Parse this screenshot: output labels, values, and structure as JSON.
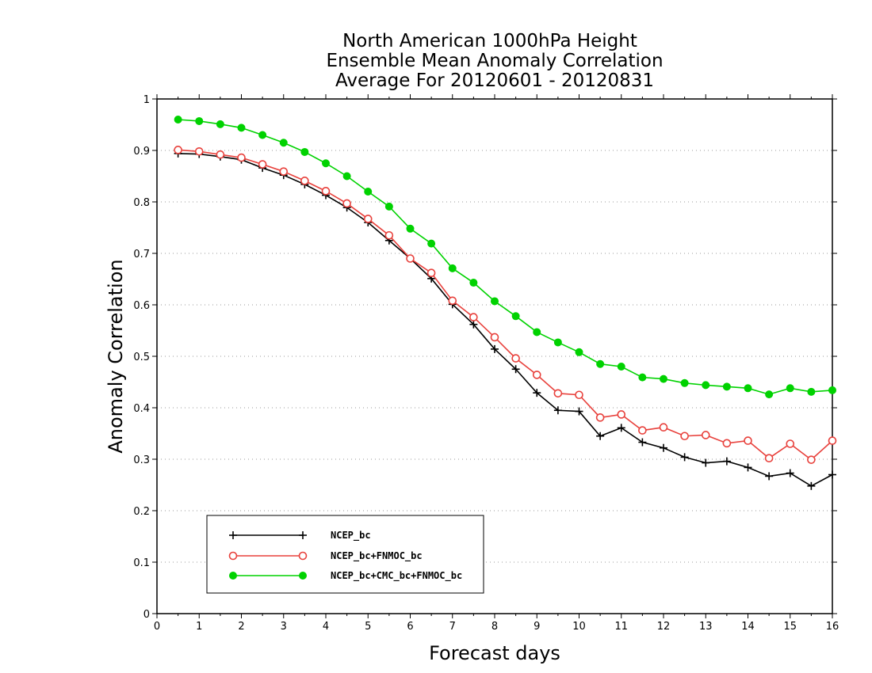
{
  "chart_data": {
    "type": "line",
    "title": [
      "North American 1000hPa Height",
      "Ensemble Mean Anomaly Correlation",
      "Average For 20120601 - 20120831"
    ],
    "xlabel": "Forecast days",
    "ylabel": "Anomaly Correlation",
    "xlim": [
      0,
      16
    ],
    "ylim": [
      0,
      1
    ],
    "xticks": [
      "0",
      "1",
      "2",
      "3",
      "4",
      "5",
      "6",
      "7",
      "8",
      "9",
      "10",
      "11",
      "12",
      "13",
      "14",
      "15",
      "16"
    ],
    "yticks": [
      "0",
      "0.1",
      "0.2",
      "0.3",
      "0.4",
      "0.5",
      "0.6",
      "0.7",
      "0.8",
      "0.9",
      "1"
    ],
    "grid": "dotted horizontal",
    "legend_position": "bottom-left",
    "x": [
      0.5,
      1,
      1.5,
      2,
      2.5,
      3,
      3.5,
      4,
      4.5,
      5,
      5.5,
      6,
      6.5,
      7,
      7.5,
      8,
      8.5,
      9,
      9.5,
      10,
      10.5,
      11,
      11.5,
      12,
      12.5,
      13,
      13.5,
      14,
      14.5,
      15,
      15.5,
      16
    ],
    "series": [
      {
        "name": "NCEP_bc",
        "color": "#000000",
        "marker": "plus",
        "values": [
          0.894,
          0.893,
          0.888,
          0.882,
          0.866,
          0.852,
          0.834,
          0.813,
          0.789,
          0.76,
          0.725,
          0.69,
          0.651,
          0.601,
          0.562,
          0.514,
          0.475,
          0.429,
          0.395,
          0.393,
          0.345,
          0.361,
          0.333,
          0.322,
          0.304,
          0.293,
          0.296,
          0.284,
          0.267,
          0.273,
          0.248,
          0.27
        ]
      },
      {
        "name": "NCEP_bc+FNMOC_bc",
        "color": "#e8413c",
        "marker": "open-circle",
        "values": [
          0.901,
          0.898,
          0.892,
          0.886,
          0.873,
          0.859,
          0.841,
          0.821,
          0.797,
          0.767,
          0.735,
          0.69,
          0.662,
          0.608,
          0.576,
          0.537,
          0.496,
          0.464,
          0.428,
          0.425,
          0.381,
          0.387,
          0.356,
          0.362,
          0.345,
          0.347,
          0.331,
          0.336,
          0.302,
          0.33,
          0.299,
          0.336
        ]
      },
      {
        "name": "NCEP_bc+CMC_bc+FNMOC_bc",
        "color": "#00d200",
        "marker": "filled-circle",
        "values": [
          0.96,
          0.957,
          0.951,
          0.944,
          0.93,
          0.915,
          0.897,
          0.875,
          0.85,
          0.82,
          0.791,
          0.748,
          0.719,
          0.671,
          0.643,
          0.607,
          0.578,
          0.547,
          0.527,
          0.508,
          0.485,
          0.48,
          0.459,
          0.456,
          0.448,
          0.444,
          0.441,
          0.438,
          0.426,
          0.438,
          0.431,
          0.434
        ]
      }
    ]
  }
}
